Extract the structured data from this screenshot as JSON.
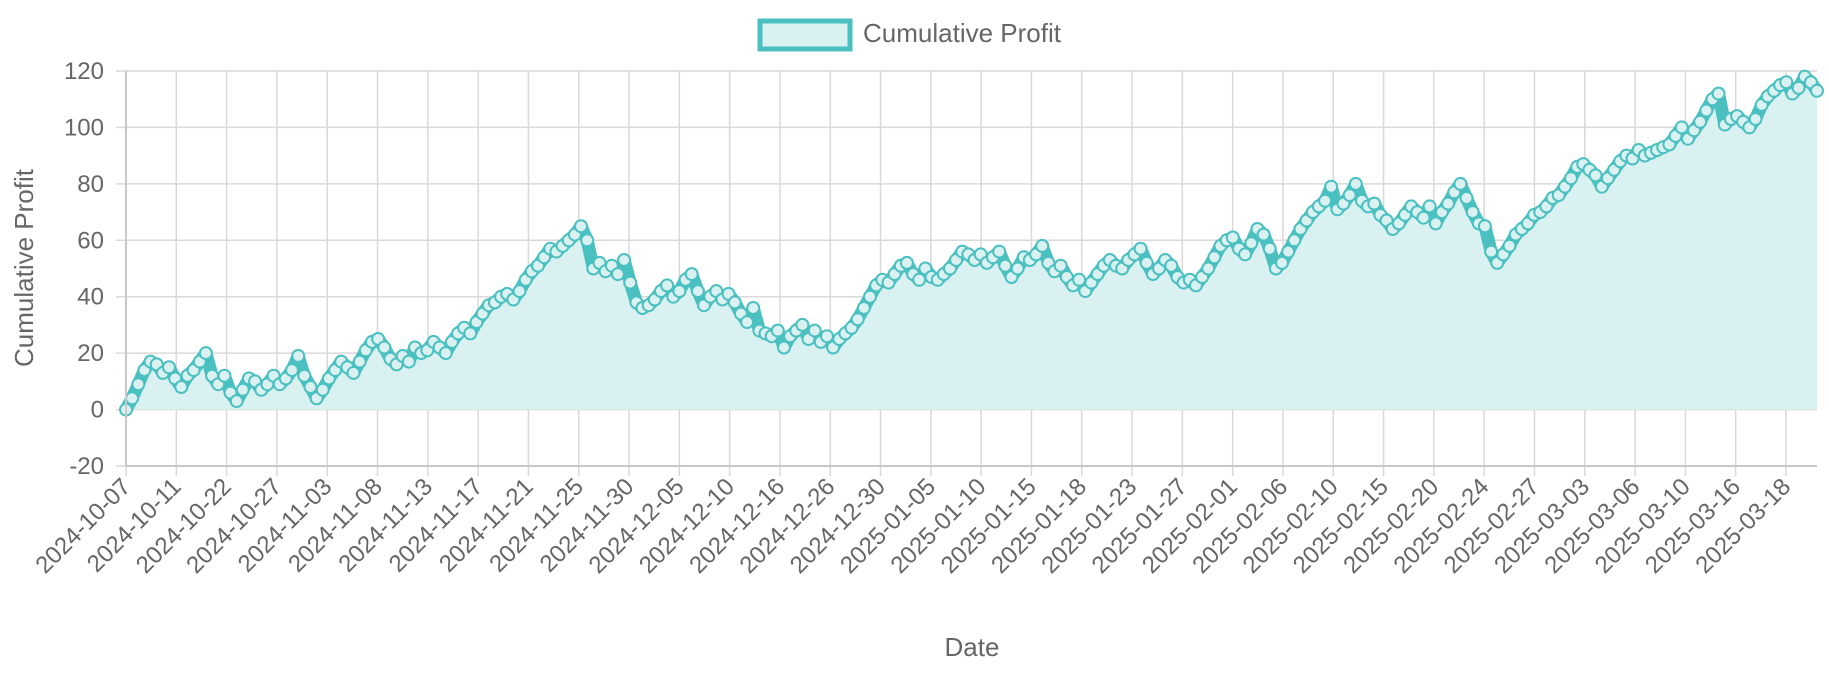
{
  "chart_data": {
    "type": "area",
    "xlabel": "Date",
    "ylabel": "Cumulative Profit",
    "ylim": [
      -20,
      120
    ],
    "y_ticks": [
      -20,
      0,
      20,
      40,
      60,
      80,
      100,
      120
    ],
    "x_tick_labels": [
      "2024-10-07",
      "2024-10-11",
      "2024-10-22",
      "2024-10-27",
      "2024-11-03",
      "2024-11-08",
      "2024-11-13",
      "2024-11-17",
      "2024-11-21",
      "2024-11-25",
      "2024-11-30",
      "2024-12-05",
      "2024-12-10",
      "2024-12-16",
      "2024-12-26",
      "2024-12-30",
      "2025-01-05",
      "2025-01-10",
      "2025-01-15",
      "2025-01-18",
      "2025-01-23",
      "2025-01-27",
      "2025-02-01",
      "2025-02-06",
      "2025-02-10",
      "2025-02-15",
      "2025-02-20",
      "2025-02-24",
      "2025-02-27",
      "2025-03-03",
      "2025-03-06",
      "2025-03-10",
      "2025-03-16",
      "2025-03-18"
    ],
    "grid": true,
    "legend_position": "top",
    "colors": {
      "line": "#4bc0c0",
      "fill": "#daf1f1",
      "grid": "#d9d9d9",
      "text": "#666666"
    },
    "series": [
      {
        "name": "Cumulative Profit",
        "values": [
          0,
          4,
          9,
          14,
          17,
          16,
          13,
          15,
          11,
          8,
          12,
          14,
          17,
          20,
          12,
          9,
          12,
          6,
          3,
          7,
          11,
          10,
          7,
          9,
          12,
          9,
          11,
          14,
          19,
          12,
          8,
          4,
          7,
          11,
          14,
          17,
          15,
          13,
          17,
          21,
          24,
          25,
          22,
          18,
          16,
          19,
          17,
          22,
          20,
          21,
          24,
          22,
          20,
          24,
          27,
          29,
          27,
          31,
          34,
          37,
          38,
          40,
          41,
          39,
          42,
          46,
          49,
          51,
          54,
          57,
          56,
          58,
          60,
          62,
          65,
          60,
          50,
          52,
          49,
          51,
          48,
          53,
          45,
          38,
          36,
          37,
          39,
          42,
          44,
          40,
          42,
          46,
          48,
          42,
          37,
          40,
          42,
          39,
          41,
          38,
          34,
          31,
          36,
          28,
          27,
          26,
          28,
          22,
          26,
          28,
          30,
          25,
          28,
          24,
          26,
          22,
          25,
          27,
          29,
          32,
          36,
          40,
          44,
          46,
          45,
          48,
          51,
          52,
          48,
          46,
          50,
          47,
          46,
          48,
          50,
          53,
          56,
          55,
          53,
          55,
          52,
          54,
          56,
          51,
          47,
          50,
          54,
          53,
          55,
          58,
          52,
          49,
          51,
          47,
          44,
          46,
          42,
          45,
          48,
          51,
          53,
          51,
          50,
          53,
          55,
          57,
          52,
          48,
          50,
          53,
          51,
          47,
          45,
          46,
          44,
          47,
          50,
          54,
          58,
          60,
          61,
          57,
          55,
          59,
          64,
          62,
          57,
          50,
          52,
          56,
          60,
          64,
          67,
          70,
          72,
          74,
          79,
          71,
          73,
          76,
          80,
          74,
          72,
          73,
          69,
          67,
          64,
          66,
          69,
          72,
          70,
          68,
          72,
          66,
          70,
          73,
          77,
          80,
          75,
          70,
          66,
          65,
          56,
          52,
          55,
          58,
          62,
          64,
          66,
          69,
          70,
          72,
          75,
          76,
          79,
          82,
          86,
          87,
          85,
          83,
          79,
          82,
          85,
          88,
          90,
          89,
          92,
          90,
          91,
          92,
          93,
          94,
          97,
          100,
          96,
          99,
          102,
          106,
          110,
          112,
          101,
          103,
          104,
          102,
          100,
          103,
          108,
          111,
          113,
          115,
          116,
          112,
          114,
          118,
          116,
          113
        ]
      }
    ]
  }
}
